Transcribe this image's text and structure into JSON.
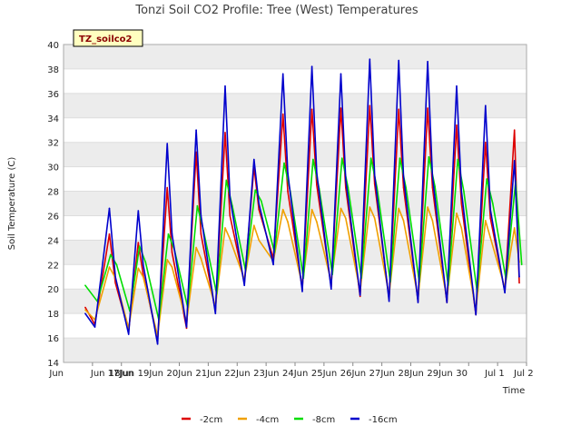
{
  "chart_data": {
    "type": "line",
    "title": "Tonzi Soil CO2 Profile: Tree (West) Temperatures",
    "xlabel": "Time",
    "ylabel": "Soil Temperature (C)",
    "ylim": [
      14,
      40
    ],
    "yticks": [
      14,
      16,
      18,
      20,
      22,
      24,
      26,
      28,
      30,
      32,
      34,
      36,
      38,
      40
    ],
    "x_range_days": [
      "Jun 16",
      "Jul 2"
    ],
    "xticks": [
      "Jun 17",
      "Jun 18",
      "Jun 19",
      "Jun 20",
      "Jun 21",
      "Jun 22",
      "Jun 23",
      "Jun 24",
      "Jun 25",
      "Jun 26",
      "Jun 27",
      "Jun 28",
      "Jun 29",
      "Jun 30",
      "Jul 1",
      "Jul 2"
    ],
    "xtick_labels": [
      "Jun 17Jun",
      "18Jun",
      "19Jun",
      "20Jun",
      "21Jun",
      "22Jun",
      "23Jun",
      "24Jun",
      "25Jun",
      "26Jun",
      "27Jun",
      "28Jun",
      "29Jun",
      "30",
      "Jul 1",
      "Jul 2"
    ],
    "grid": true,
    "legend_position": "bottom",
    "annotation": "TZ_soilco2",
    "series": [
      {
        "name": "-2cm",
        "color": "#dd0000",
        "x": [
          "Jun 16 18:00",
          "Jun 17 02:00",
          "Jun 17 14:00",
          "Jun 17 19:00",
          "Jun 18 06:00",
          "Jun 18 14:00",
          "Jun 18 18:00",
          "Jun 19 06:00",
          "Jun 19 14:00",
          "Jun 19 18:00",
          "Jun 20 06:00",
          "Jun 20 14:00",
          "Jun 20 18:00",
          "Jun 21 06:00",
          "Jun 21 14:00",
          "Jun 21 18:00",
          "Jun 22 06:00",
          "Jun 22 14:00",
          "Jun 22 18:00",
          "Jun 23 06:00",
          "Jun 23 14:00",
          "Jun 23 18:00",
          "Jun 24 06:00",
          "Jun 24 14:00",
          "Jun 24 18:00",
          "Jun 25 06:00",
          "Jun 25 14:00",
          "Jun 25 18:00",
          "Jun 26 06:00",
          "Jun 26 14:00",
          "Jun 26 18:00",
          "Jun 27 06:00",
          "Jun 27 14:00",
          "Jun 27 18:00",
          "Jun 28 06:00",
          "Jun 28 14:00",
          "Jun 28 18:00",
          "Jun 29 06:00",
          "Jun 29 14:00",
          "Jun 29 18:00",
          "Jun 30 06:00",
          "Jun 30 14:00",
          "Jun 30 18:00",
          "Jul 1 06:00",
          "Jul 1 14:00",
          "Jul 1 18:00"
        ],
        "values": [
          18.5,
          17.1,
          24.5,
          20.5,
          16.6,
          23.8,
          21.2,
          15.9,
          28.3,
          23.0,
          16.8,
          31.2,
          24.5,
          18.2,
          32.8,
          26.0,
          20.5,
          30.0,
          26.5,
          22.5,
          34.3,
          28.0,
          20.0,
          34.7,
          28.5,
          20.2,
          34.8,
          28.3,
          19.4,
          35.0,
          28.6,
          19.2,
          34.7,
          28.3,
          19.0,
          34.8,
          28.3,
          18.9,
          33.4,
          27.0,
          17.9,
          32.0,
          25.8,
          19.8,
          33.0,
          20.5
        ]
      },
      {
        "name": "-4cm",
        "color": "#f0a000",
        "x": [
          "Jun 16 18:00",
          "Jun 17 02:00",
          "Jun 17 14:00",
          "Jun 17 19:00",
          "Jun 18 06:00",
          "Jun 18 14:00",
          "Jun 18 18:00",
          "Jun 19 06:00",
          "Jun 19 14:00",
          "Jun 19 18:00",
          "Jun 20 06:00",
          "Jun 20 14:00",
          "Jun 20 18:00",
          "Jun 21 06:00",
          "Jun 21 14:00",
          "Jun 21 18:00",
          "Jun 22 06:00",
          "Jun 22 14:00",
          "Jun 22 18:00",
          "Jun 23 06:00",
          "Jun 23 14:00",
          "Jun 23 18:00",
          "Jun 24 06:00",
          "Jun 24 14:00",
          "Jun 24 18:00",
          "Jun 25 06:00",
          "Jun 25 14:00",
          "Jun 25 18:00",
          "Jun 26 06:00",
          "Jun 26 14:00",
          "Jun 26 18:00",
          "Jun 27 06:00",
          "Jun 27 14:00",
          "Jun 27 18:00",
          "Jun 28 06:00",
          "Jun 28 14:00",
          "Jun 28 18:00",
          "Jun 29 06:00",
          "Jun 29 14:00",
          "Jun 29 18:00",
          "Jun 30 06:00",
          "Jun 30 14:00",
          "Jun 30 18:00",
          "Jul 1 06:00",
          "Jul 1 14:00",
          "Jul 1 18:00"
        ],
        "values": [
          18.3,
          17.5,
          21.8,
          20.9,
          16.8,
          21.7,
          21.0,
          16.2,
          22.4,
          21.8,
          17.3,
          23.4,
          22.5,
          18.6,
          25.0,
          24.1,
          20.8,
          25.2,
          24.0,
          22.3,
          26.5,
          25.5,
          20.3,
          26.5,
          25.5,
          20.6,
          26.6,
          25.8,
          19.8,
          26.7,
          25.8,
          19.5,
          26.6,
          25.6,
          19.3,
          26.7,
          25.6,
          19.2,
          26.2,
          25.0,
          18.3,
          25.6,
          24.2,
          20.1,
          25.0,
          22.2
        ]
      },
      {
        "name": "-8cm",
        "color": "#00dd00",
        "x": [
          "Jun 16 18:00",
          "Jun 17 04:00",
          "Jun 17 15:00",
          "Jun 17 20:00",
          "Jun 18 07:00",
          "Jun 18 15:00",
          "Jun 18 20:00",
          "Jun 19 07:00",
          "Jun 19 15:00",
          "Jun 19 20:00",
          "Jun 20 07:00",
          "Jun 20 15:00",
          "Jun 20 20:00",
          "Jun 21 07:00",
          "Jun 21 15:00",
          "Jun 21 20:00",
          "Jun 22 07:00",
          "Jun 22 15:00",
          "Jun 22 20:00",
          "Jun 23 07:00",
          "Jun 23 15:00",
          "Jun 23 20:00",
          "Jun 24 07:00",
          "Jun 24 15:00",
          "Jun 24 20:00",
          "Jun 25 07:00",
          "Jun 25 15:00",
          "Jun 25 20:00",
          "Jun 26 07:00",
          "Jun 26 15:00",
          "Jun 26 20:00",
          "Jun 27 07:00",
          "Jun 27 15:00",
          "Jun 27 20:00",
          "Jun 28 07:00",
          "Jun 28 15:00",
          "Jun 28 20:00",
          "Jun 29 07:00",
          "Jun 29 15:00",
          "Jun 29 20:00",
          "Jun 30 07:00",
          "Jun 30 15:00",
          "Jun 30 20:00",
          "Jul 1 07:00",
          "Jul 1 15:00",
          "Jul 1 20:00"
        ],
        "values": [
          20.3,
          19.0,
          22.8,
          22.0,
          18.2,
          23.5,
          22.2,
          17.5,
          24.5,
          23.2,
          18.5,
          26.8,
          24.8,
          19.6,
          28.9,
          26.8,
          21.5,
          28.1,
          27.2,
          23.0,
          30.3,
          28.0,
          20.9,
          30.6,
          28.2,
          21.2,
          30.7,
          28.3,
          20.9,
          30.7,
          28.3,
          20.6,
          30.7,
          28.3,
          20.6,
          30.8,
          28.4,
          20.3,
          30.6,
          28.0,
          19.8,
          29.0,
          27.0,
          20.8,
          28.8,
          22.0
        ]
      },
      {
        "name": "-16cm",
        "color": "#0000cc",
        "x": [
          "Jun 16 18:00",
          "Jun 17 02:00",
          "Jun 17 14:00",
          "Jun 17 19:00",
          "Jun 18 06:00",
          "Jun 18 14:00",
          "Jun 18 18:00",
          "Jun 19 06:00",
          "Jun 19 14:00",
          "Jun 19 18:00",
          "Jun 20 06:00",
          "Jun 20 14:00",
          "Jun 20 18:00",
          "Jun 21 06:00",
          "Jun 21 14:00",
          "Jun 21 18:00",
          "Jun 22 06:00",
          "Jun 22 14:00",
          "Jun 22 18:00",
          "Jun 23 06:00",
          "Jun 23 14:00",
          "Jun 23 18:00",
          "Jun 24 06:00",
          "Jun 24 14:00",
          "Jun 24 18:00",
          "Jun 25 06:00",
          "Jun 25 14:00",
          "Jun 25 18:00",
          "Jun 26 06:00",
          "Jun 26 14:00",
          "Jun 26 18:00",
          "Jun 27 06:00",
          "Jun 27 14:00",
          "Jun 27 18:00",
          "Jun 28 06:00",
          "Jun 28 14:00",
          "Jun 28 18:00",
          "Jun 29 06:00",
          "Jun 29 14:00",
          "Jun 29 18:00",
          "Jun 30 06:00",
          "Jun 30 14:00",
          "Jun 30 18:00",
          "Jul 1 06:00",
          "Jul 1 14:00",
          "Jul 1 18:00"
        ],
        "values": [
          18.0,
          16.9,
          26.6,
          21.0,
          16.3,
          26.4,
          22.0,
          15.5,
          31.9,
          24.5,
          16.9,
          33.0,
          26.0,
          18.0,
          36.6,
          27.5,
          20.3,
          30.6,
          27.0,
          22.0,
          37.6,
          29.5,
          19.8,
          38.2,
          29.5,
          20.0,
          37.6,
          29.0,
          19.5,
          38.8,
          29.3,
          19.0,
          38.7,
          29.2,
          18.9,
          38.6,
          29.2,
          18.9,
          36.6,
          28.0,
          17.9,
          35.0,
          26.5,
          19.7,
          30.5,
          21.0
        ]
      }
    ]
  }
}
